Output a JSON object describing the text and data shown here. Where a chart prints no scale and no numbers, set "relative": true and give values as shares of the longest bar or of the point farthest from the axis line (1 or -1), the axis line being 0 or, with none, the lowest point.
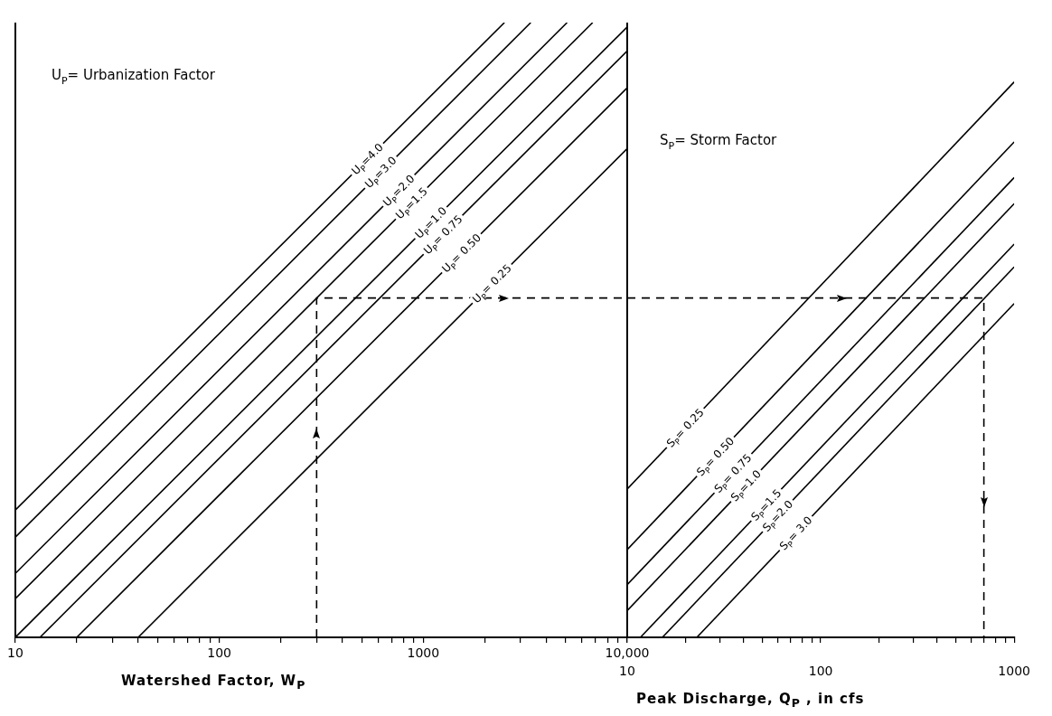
{
  "chart_data": [
    {
      "type": "line",
      "relative": true,
      "log": "x",
      "tick_labels": "x",
      "xlabel": "Watershed Factor, W$_{P}$",
      "xlim": [
        10,
        10000
      ],
      "xticks": [
        10,
        {
          "value": 20,
          "label": null
        },
        {
          "value": 30,
          "label": null
        },
        {
          "value": 40,
          "label": null
        },
        {
          "value": 50,
          "label": null
        },
        {
          "value": 60,
          "label": null
        },
        {
          "value": 70,
          "label": null
        },
        {
          "value": 80,
          "label": null
        },
        {
          "value": 90,
          "label": null
        },
        100,
        {
          "value": 200,
          "label": null
        },
        {
          "value": 300,
          "label": null
        },
        {
          "value": 400,
          "label": null
        },
        {
          "value": 500,
          "label": null
        },
        {
          "value": 600,
          "label": null
        },
        {
          "value": 700,
          "label": null
        },
        {
          "value": 800,
          "label": null
        },
        {
          "value": 900,
          "label": null
        },
        1000,
        {
          "value": 2000,
          "label": null
        },
        {
          "value": 3000,
          "label": null
        },
        {
          "value": 4000,
          "label": null
        },
        {
          "value": 5000,
          "label": null
        },
        {
          "value": 6000,
          "label": null
        },
        {
          "value": 7000,
          "label": null
        },
        {
          "value": 8000,
          "label": null
        },
        {
          "value": 9000,
          "label": null
        },
        {
          "value": 10000,
          "label": "10,000"
        }
      ],
      "annotations": [
        "U$_{P}$= Urbanization Factor"
      ],
      "series": [
        {
          "name": "U$_{P}$=4.0",
          "color": "#000000",
          "x": [
            10,
            2500
          ],
          "values": [
            0.207,
            1.0
          ]
        },
        {
          "name": "U$_{P}$=3.0",
          "color": "#000000",
          "x": [
            10,
            3365
          ],
          "values": [
            0.163,
            1.0
          ]
        },
        {
          "name": "U$_{P}$=2.0",
          "color": "#000000",
          "x": [
            10,
            5070
          ],
          "values": [
            0.104,
            1.0
          ]
        },
        {
          "name": "U$_{P}$=1.5",
          "color": "#000000",
          "x": [
            10,
            6770
          ],
          "values": [
            0.063,
            1.0
          ]
        },
        {
          "name": "U$_{P}$=1.0",
          "color": "#000000",
          "x": [
            10,
            10000
          ],
          "values": [
            0,
            0.993
          ]
        },
        {
          "name": "U$_{P}$= 0.75",
          "color": "#000000",
          "x": [
            13.2,
            10000
          ],
          "values": [
            0,
            0.954
          ]
        },
        {
          "name": "U$_{P}$= 0.50",
          "color": "#000000",
          "x": [
            20,
            10000
          ],
          "values": [
            0,
            0.894
          ]
        },
        {
          "name": "U$_{P}$= 0.25",
          "color": "#000000",
          "x": [
            40,
            10000
          ],
          "values": [
            0,
            0.795
          ]
        },
        {
          "color": "#000000",
          "line_style": "dashed",
          "x": [
            300,
            300,
            10000
          ],
          "values": [
            0,
            0.552,
            0.552
          ]
        }
      ]
    },
    {
      "type": "line",
      "relative": true,
      "log": "x",
      "tick_labels": "x",
      "xlabel": "Peak Discharge, Q$_{P}$ , in cfs",
      "xlim": [
        10,
        1000
      ],
      "xticks": [
        10,
        {
          "value": 20,
          "label": null
        },
        {
          "value": 30,
          "label": null
        },
        {
          "value": 40,
          "label": null
        },
        {
          "value": 50,
          "label": null
        },
        {
          "value": 60,
          "label": null
        },
        {
          "value": 70,
          "label": null
        },
        {
          "value": 80,
          "label": null
        },
        {
          "value": 90,
          "label": null
        },
        100,
        {
          "value": 200,
          "label": null
        },
        {
          "value": 300,
          "label": null
        },
        {
          "value": 400,
          "label": null
        },
        {
          "value": 500,
          "label": null
        },
        {
          "value": 600,
          "label": null
        },
        {
          "value": 700,
          "label": null
        },
        {
          "value": 800,
          "label": null
        },
        {
          "value": 900,
          "label": null
        },
        1000
      ],
      "annotations": [
        "S$_{P}$= Storm Factor"
      ],
      "series": [
        {
          "name": "S$_{P}$= 0.25",
          "color": "#000000",
          "x": [
            10,
            1000
          ],
          "values": [
            0.267,
            1.0
          ]
        },
        {
          "name": "S$_{P}$= 0.50",
          "color": "#000000",
          "x": [
            10,
            1000
          ],
          "values": [
            0.158,
            0.892
          ]
        },
        {
          "name": "S$_{P}$= 0.75",
          "color": "#000000",
          "x": [
            10,
            1000
          ],
          "values": [
            0.095,
            0.828
          ]
        },
        {
          "name": "S$_{P}$=1.0",
          "color": "#000000",
          "x": [
            10,
            1000
          ],
          "values": [
            0.048,
            0.781
          ]
        },
        {
          "name": "S$_{P}$=1.5",
          "color": "#000000",
          "x": [
            11.7,
            1000
          ],
          "values": [
            0,
            0.708
          ]
        },
        {
          "name": "S$_{P}$=2.0",
          "color": "#000000",
          "x": [
            15.2,
            1000
          ],
          "values": [
            0,
            0.667
          ]
        },
        {
          "name": "S$_{P}$= 3.0",
          "color": "#000000",
          "x": [
            22.9,
            1000
          ],
          "values": [
            0,
            0.601
          ]
        },
        {
          "color": "#000000",
          "line_style": "dashed",
          "x": [
            10,
            697,
            697
          ],
          "values": [
            0.611,
            0.611,
            0
          ]
        }
      ]
    }
  ]
}
